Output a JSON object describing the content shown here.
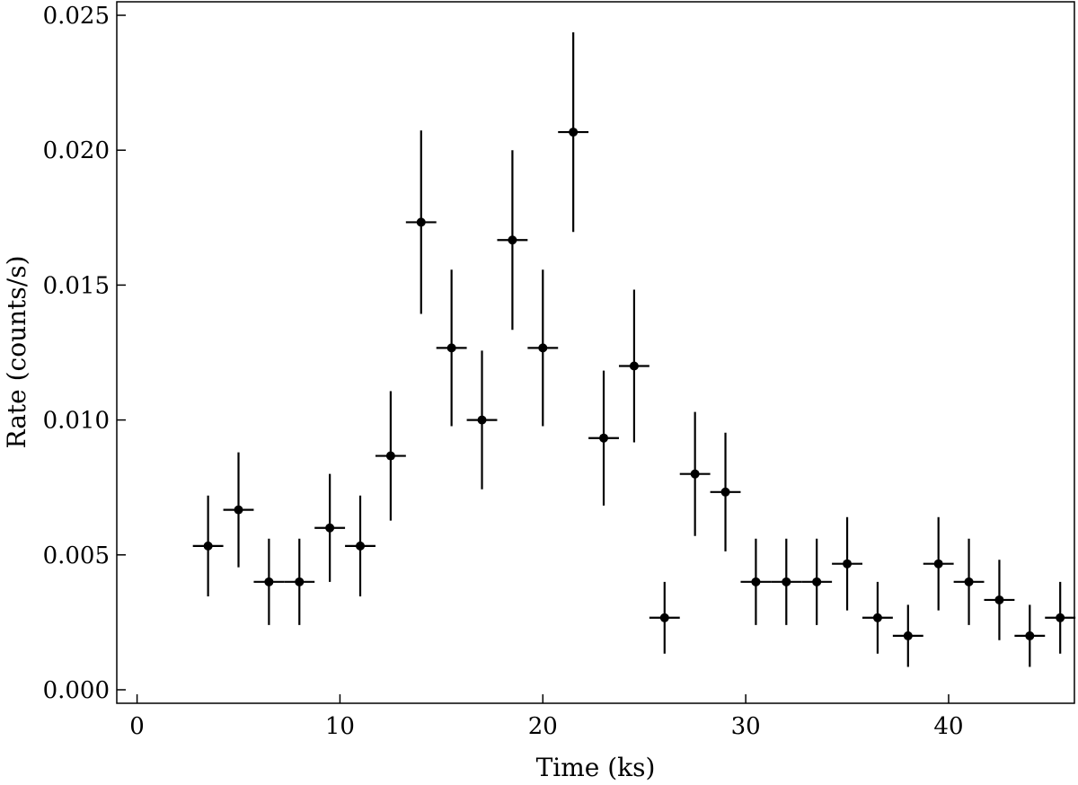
{
  "chart_data": {
    "type": "scatter",
    "xlabel": "Time (ks)",
    "ylabel": "Rate (counts/s)",
    "xlim": [
      -1,
      46.2
    ],
    "ylim": [
      -0.0005,
      0.0255
    ],
    "xticks": [
      "0",
      "10",
      "20",
      "30",
      "40"
    ],
    "yticks": [
      "0.000",
      "0.005",
      "0.010",
      "0.015",
      "0.020",
      "0.025"
    ],
    "grid": false,
    "legend": "none",
    "series": [
      {
        "x_half_width": 0.75,
        "points": [
          {
            "x": 3.5,
            "y": 0.00533,
            "yerr": 0.00187
          },
          {
            "x": 5.0,
            "y": 0.00667,
            "yerr": 0.00213
          },
          {
            "x": 6.5,
            "y": 0.004,
            "yerr": 0.0016
          },
          {
            "x": 8.0,
            "y": 0.004,
            "yerr": 0.0016
          },
          {
            "x": 9.5,
            "y": 0.006,
            "yerr": 0.002
          },
          {
            "x": 11.0,
            "y": 0.00533,
            "yerr": 0.00187
          },
          {
            "x": 12.5,
            "y": 0.00867,
            "yerr": 0.0024
          },
          {
            "x": 14.0,
            "y": 0.01733,
            "yerr": 0.0034
          },
          {
            "x": 15.5,
            "y": 0.01267,
            "yerr": 0.0029
          },
          {
            "x": 17.0,
            "y": 0.01,
            "yerr": 0.00257
          },
          {
            "x": 18.5,
            "y": 0.01667,
            "yerr": 0.00333
          },
          {
            "x": 20.0,
            "y": 0.01267,
            "yerr": 0.0029
          },
          {
            "x": 21.5,
            "y": 0.02067,
            "yerr": 0.0037
          },
          {
            "x": 23.0,
            "y": 0.00933,
            "yerr": 0.0025
          },
          {
            "x": 24.5,
            "y": 0.012,
            "yerr": 0.00283
          },
          {
            "x": 26.0,
            "y": 0.00267,
            "yerr": 0.00133
          },
          {
            "x": 27.5,
            "y": 0.008,
            "yerr": 0.0023
          },
          {
            "x": 29.0,
            "y": 0.00733,
            "yerr": 0.0022
          },
          {
            "x": 30.5,
            "y": 0.004,
            "yerr": 0.0016
          },
          {
            "x": 32.0,
            "y": 0.004,
            "yerr": 0.0016
          },
          {
            "x": 33.5,
            "y": 0.004,
            "yerr": 0.0016
          },
          {
            "x": 35.0,
            "y": 0.00467,
            "yerr": 0.00173
          },
          {
            "x": 36.5,
            "y": 0.00267,
            "yerr": 0.00133
          },
          {
            "x": 38.0,
            "y": 0.002,
            "yerr": 0.00115
          },
          {
            "x": 39.5,
            "y": 0.00467,
            "yerr": 0.00173
          },
          {
            "x": 41.0,
            "y": 0.004,
            "yerr": 0.0016
          },
          {
            "x": 42.5,
            "y": 0.00333,
            "yerr": 0.00149
          },
          {
            "x": 44.0,
            "y": 0.002,
            "yerr": 0.00115
          },
          {
            "x": 45.5,
            "y": 0.00267,
            "yerr": 0.00133
          }
        ]
      }
    ],
    "marker_color": "#000000"
  }
}
